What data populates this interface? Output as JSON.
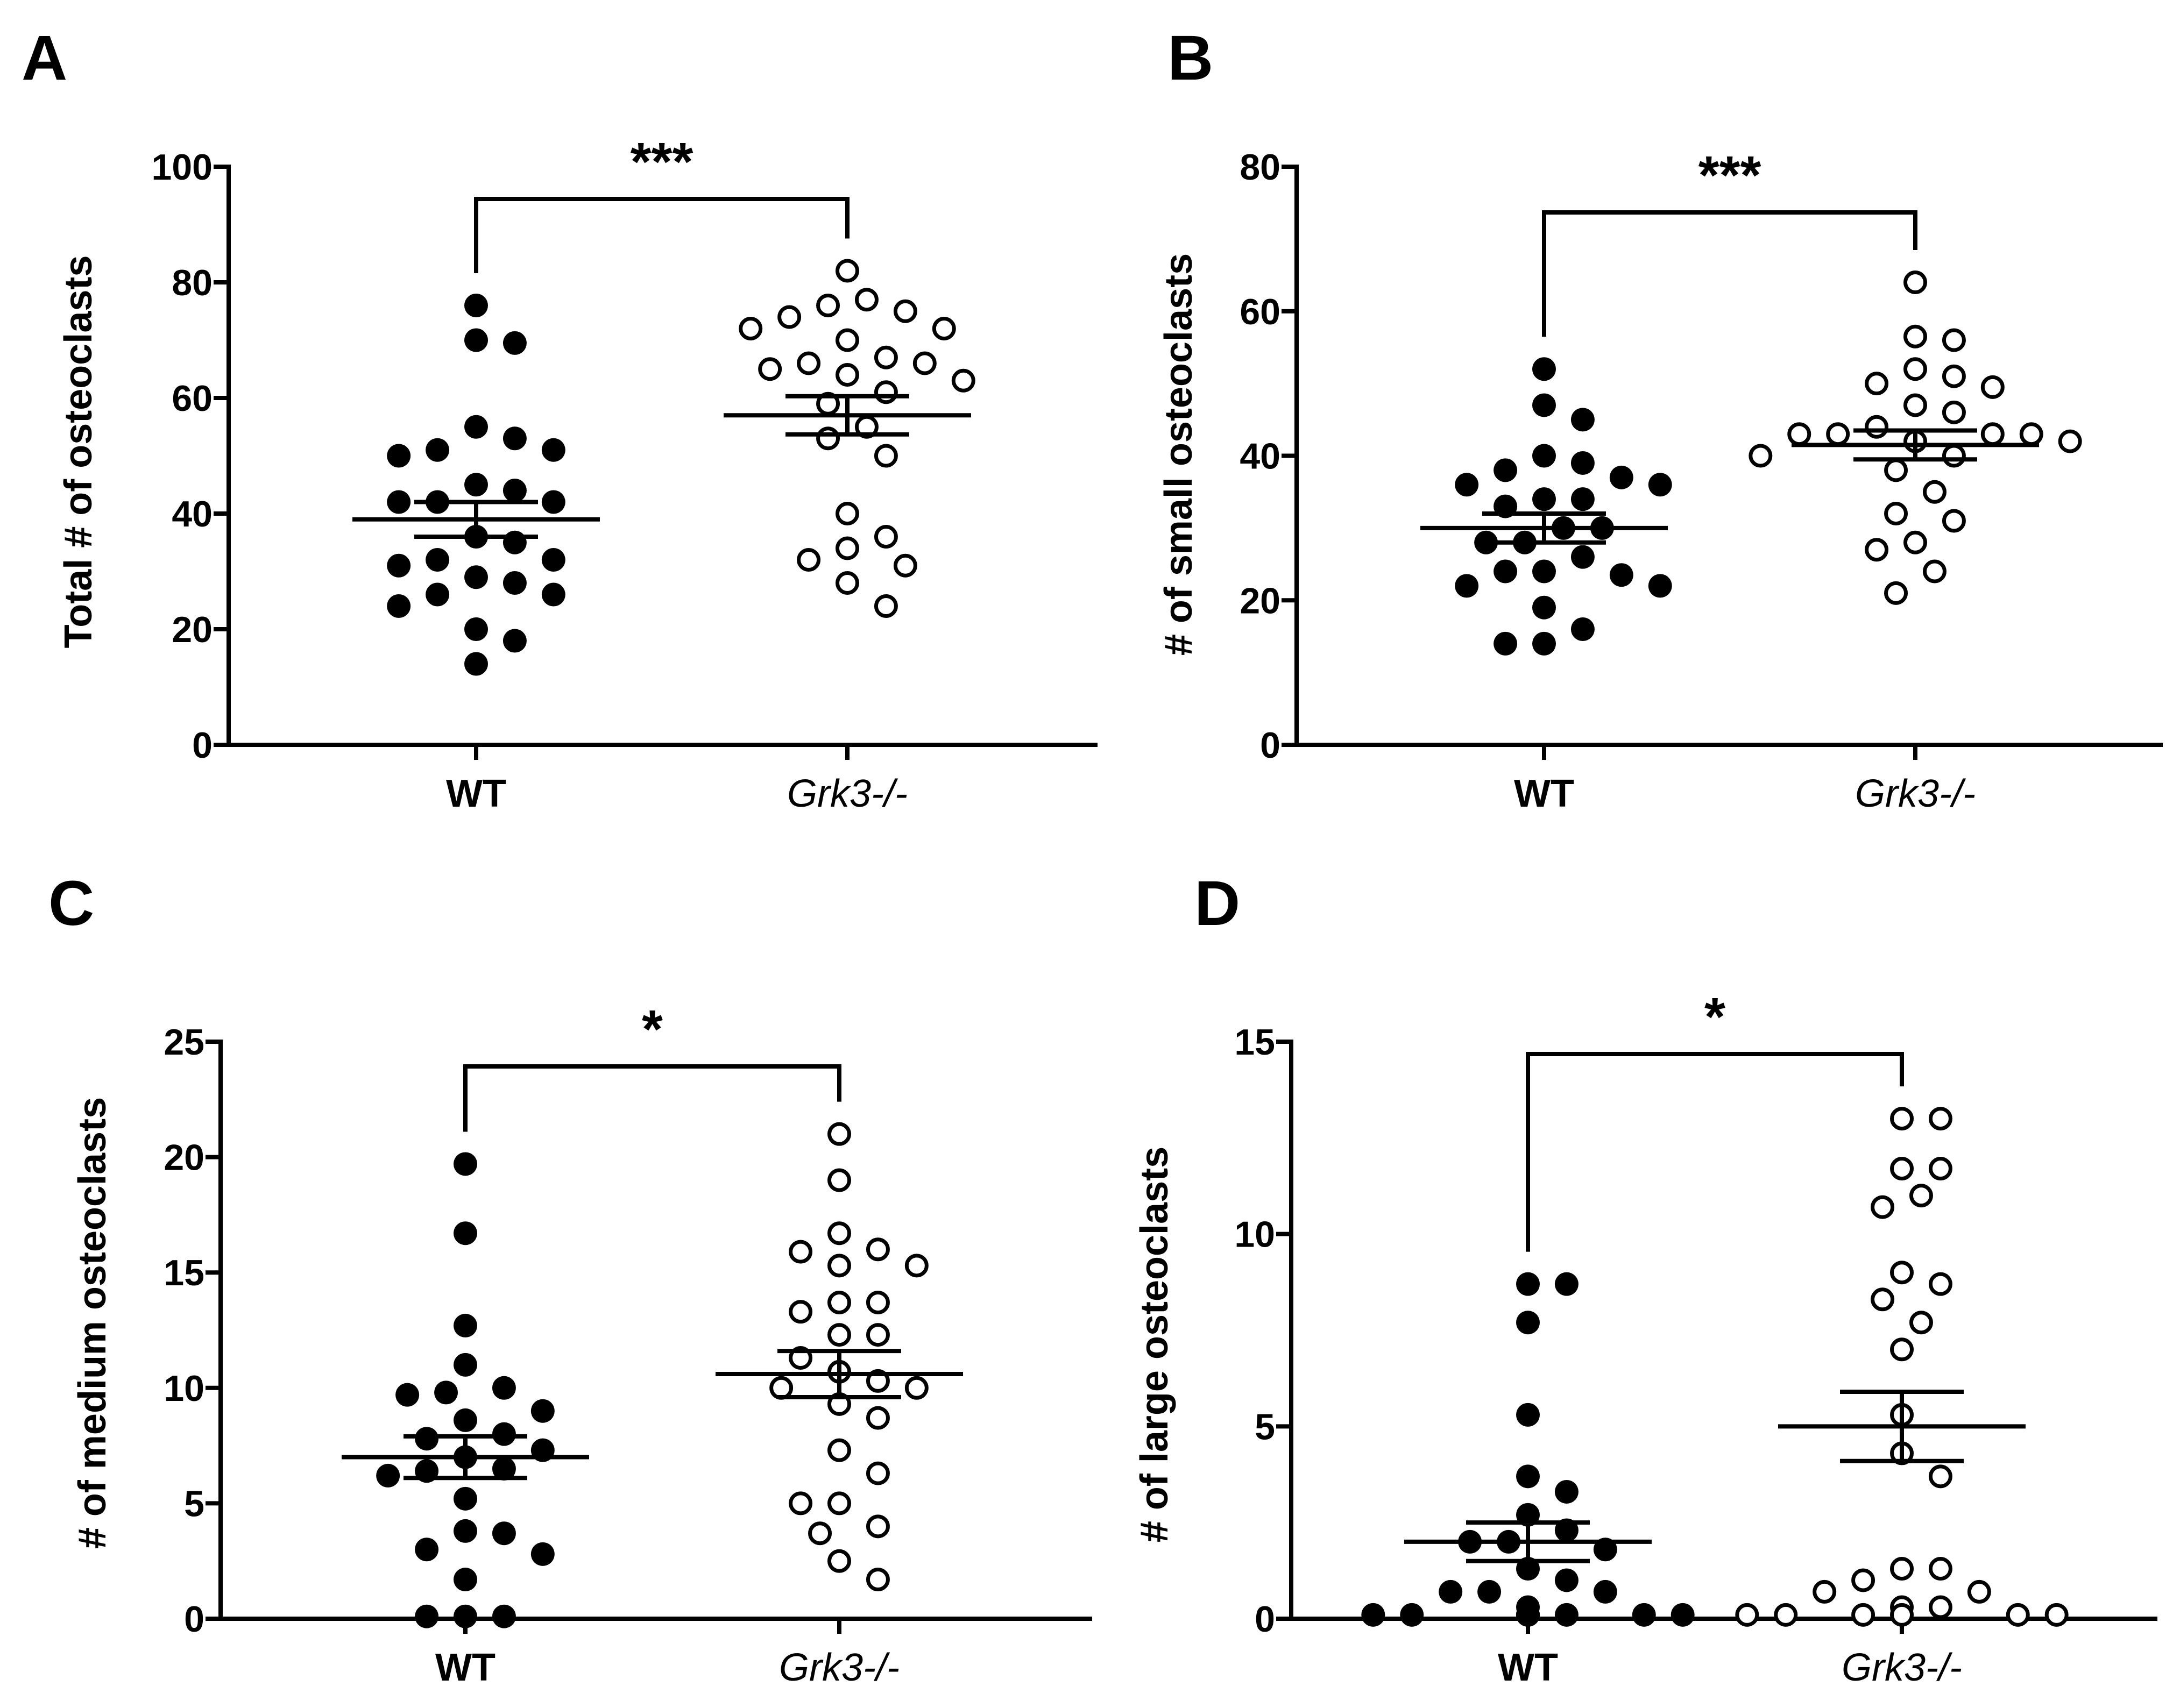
{
  "figure": {
    "panels": [
      "A",
      "B",
      "C",
      "D"
    ]
  },
  "chart_data": [
    {
      "panel": "A",
      "type": "scatter",
      "title": "",
      "xlabel": "",
      "ylabel": "Total # of osteoclasts",
      "ylim": [
        0,
        100
      ],
      "yticks": [
        "0",
        "20",
        "40",
        "60",
        "80",
        "100"
      ],
      "categories": [
        "WT",
        "Grk3-/-"
      ],
      "significance": "***",
      "groups": [
        {
          "name": "WT",
          "marker": "filled",
          "mean": 39,
          "sem": 3,
          "values": [
            76,
            70,
            69.5,
            55,
            53,
            51,
            51,
            50,
            45,
            44,
            42,
            42,
            42,
            36,
            35,
            32,
            32,
            31,
            29,
            28,
            26,
            26,
            24,
            20,
            18,
            14
          ]
        },
        {
          "name": "Grk3-/-",
          "marker": "open",
          "mean": 57,
          "sem": 3.3,
          "values": [
            82,
            77,
            76,
            75,
            74,
            72,
            72,
            70,
            67,
            66,
            66,
            65,
            64,
            63,
            61,
            59,
            55,
            53,
            50,
            40,
            36,
            34,
            32,
            31,
            28,
            24
          ]
        }
      ]
    },
    {
      "panel": "B",
      "type": "scatter",
      "title": "",
      "xlabel": "",
      "ylabel": "# of small osteoclasts",
      "ylim": [
        0,
        80
      ],
      "yticks": [
        "0",
        "20",
        "40",
        "60",
        "80"
      ],
      "categories": [
        "WT",
        "Grk3-/-"
      ],
      "significance": "***",
      "groups": [
        {
          "name": "WT",
          "marker": "filled",
          "mean": 30,
          "sem": 2,
          "values": [
            52,
            47,
            45,
            40,
            39,
            38,
            37,
            36,
            36,
            34,
            34,
            33,
            30,
            30,
            28,
            28,
            26,
            24,
            24,
            23.5,
            22,
            22,
            19,
            16,
            14,
            14
          ]
        },
        {
          "name": "Grk3-/-",
          "marker": "open",
          "mean": 41.5,
          "sem": 2,
          "values": [
            64,
            56.5,
            56,
            52,
            51,
            50,
            49.5,
            47,
            46,
            44,
            43,
            43,
            43,
            43,
            42,
            42,
            40,
            40,
            38,
            35,
            32,
            31,
            28,
            27,
            24,
            21
          ]
        }
      ]
    },
    {
      "panel": "C",
      "type": "scatter",
      "title": "",
      "xlabel": "",
      "ylabel": "# of medium osteoclasts",
      "ylim": [
        0,
        25
      ],
      "yticks": [
        "0",
        "5",
        "10",
        "15",
        "20",
        "25"
      ],
      "categories": [
        "WT",
        "Grk3-/-"
      ],
      "significance": "*",
      "groups": [
        {
          "name": "WT",
          "marker": "filled",
          "mean": 7,
          "sem": 0.9,
          "values": [
            19.7,
            16.7,
            12.7,
            11,
            10,
            9.8,
            9.7,
            9,
            8.6,
            8,
            7.8,
            7.3,
            7,
            6.5,
            6.4,
            6.2,
            5.2,
            3.8,
            3.7,
            3,
            2.8,
            1.7,
            0.1,
            0.1,
            0.1
          ]
        },
        {
          "name": "Grk3-/-",
          "marker": "open",
          "mean": 10.6,
          "sem": 1,
          "values": [
            21,
            19,
            16.7,
            16,
            15.9,
            15.3,
            15.3,
            13.7,
            13.7,
            13.3,
            12.3,
            12.3,
            11.3,
            10.7,
            10.3,
            10,
            10,
            9.3,
            8.7,
            7.3,
            6.3,
            5,
            5,
            4,
            3.7,
            2.5,
            1.7
          ]
        }
      ]
    },
    {
      "panel": "D",
      "type": "scatter",
      "title": "",
      "xlabel": "",
      "ylabel": "# of large osteoclasts",
      "ylim": [
        0,
        15
      ],
      "yticks": [
        "0",
        "5",
        "10",
        "15"
      ],
      "categories": [
        "WT",
        "Grk3-/-"
      ],
      "significance": "*",
      "groups": [
        {
          "name": "WT",
          "marker": "filled",
          "mean": 2,
          "sem": 0.5,
          "values": [
            8.7,
            8.7,
            7.7,
            5.3,
            3.7,
            3.3,
            2.7,
            2.3,
            2,
            2,
            1.8,
            1.3,
            1,
            0.7,
            0.7,
            0.7,
            0.3,
            0.1,
            0.1,
            0.1,
            0.1,
            0.1,
            0.1,
            0.1,
            0.1,
            0.1
          ]
        },
        {
          "name": "Grk3-/-",
          "marker": "open",
          "mean": 5,
          "sem": 0.9,
          "values": [
            13,
            13,
            11.7,
            11.7,
            11,
            10.7,
            9,
            8.7,
            8.3,
            7.7,
            7,
            5.3,
            4.3,
            3.7,
            1.3,
            1.3,
            1,
            0.7,
            0.7,
            0.3,
            0.3,
            0.1,
            0.1,
            0.1,
            0.1,
            0.1,
            0.1
          ]
        }
      ]
    }
  ]
}
